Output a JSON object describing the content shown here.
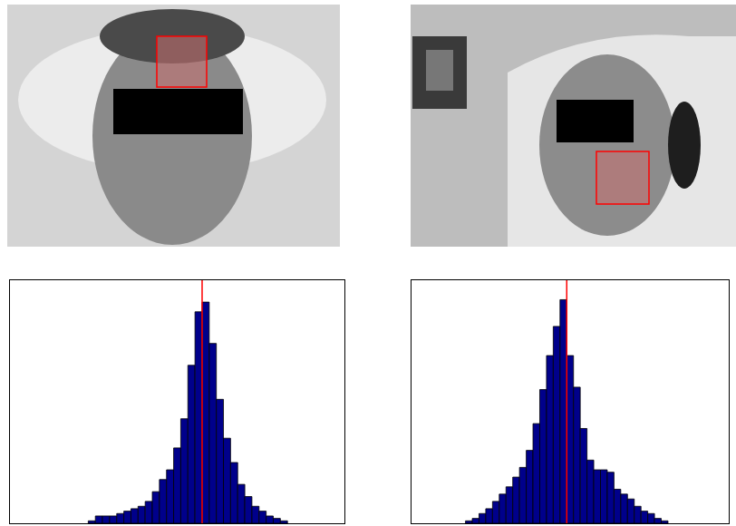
{
  "chart_data": [
    {
      "type": "histogram",
      "bins": [
        -16,
        -15,
        -14,
        -13,
        -12,
        -11,
        -10,
        -9,
        -8,
        -7,
        -6,
        -5,
        -4,
        -3,
        -2,
        -1,
        0,
        1,
        2,
        3,
        4,
        5,
        6,
        7,
        8,
        9,
        10,
        11,
        12
      ],
      "values": [
        1,
        3,
        3,
        3,
        4,
        5,
        6,
        7,
        9,
        13,
        18,
        22,
        31,
        43,
        65,
        87,
        91,
        74,
        51,
        35,
        25,
        16,
        11,
        7,
        5,
        3,
        2,
        1
      ],
      "color": "#00008b",
      "reference_x": 0,
      "reference_color": "#ff0000",
      "xlim": [
        -27,
        20
      ],
      "ylim": [
        0,
        100
      ],
      "tick_labels": false
    },
    {
      "type": "histogram",
      "bins": [
        -15,
        -14,
        -13,
        -12,
        -11,
        -10,
        -9,
        -8,
        -7,
        -6,
        -5,
        -4,
        -3,
        -2,
        -1,
        0,
        1,
        2,
        3,
        4,
        5,
        6,
        7,
        8,
        9,
        10,
        11,
        12,
        13,
        14,
        15
      ],
      "values": [
        1,
        2,
        4,
        6,
        9,
        12,
        15,
        19,
        23,
        30,
        41,
        55,
        69,
        81,
        92,
        69,
        56,
        39,
        26,
        22,
        22,
        21,
        14,
        12,
        10,
        7,
        5,
        4,
        2,
        1
      ],
      "color": "#00008b",
      "reference_x": 0,
      "reference_color": "#ff0000",
      "xlim": [
        -23,
        24
      ],
      "ylim": [
        0,
        100
      ],
      "tick_labels": false
    }
  ]
}
